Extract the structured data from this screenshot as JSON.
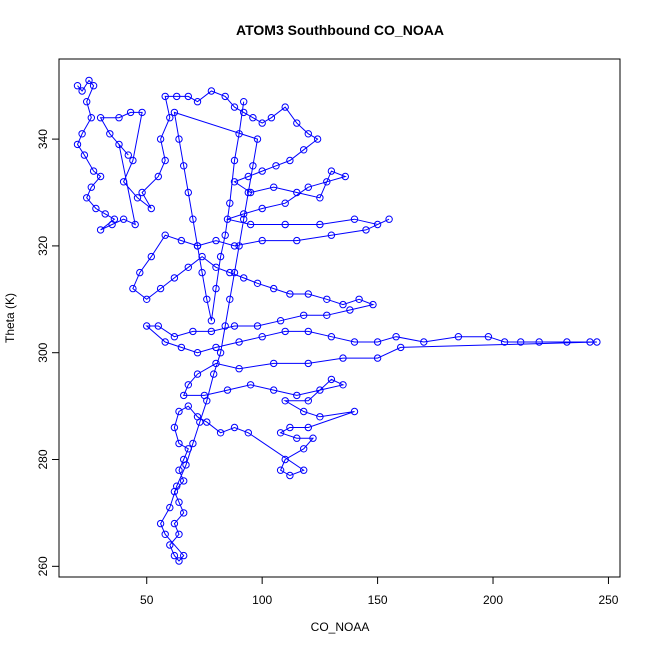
{
  "chart_data": {
    "type": "scatter",
    "title": "ATOM3 Southbound CO_NOAA",
    "xlabel": "CO_NOAA",
    "ylabel": "Theta (K)",
    "xlim": [
      12,
      255
    ],
    "ylim": [
      258,
      355
    ],
    "xticks": [
      50,
      100,
      150,
      200,
      250
    ],
    "yticks": [
      260,
      280,
      300,
      320,
      340
    ],
    "marker": "open-circle",
    "connected": true,
    "color": "#0000ff",
    "grid": false,
    "legend": "none",
    "series": [
      {
        "points": [
          [
            20,
            350
          ],
          [
            22,
            349
          ],
          [
            25,
            351
          ],
          [
            27,
            350
          ],
          [
            24,
            347
          ],
          [
            26,
            344
          ],
          [
            22,
            341
          ],
          [
            20,
            339
          ],
          [
            23,
            337
          ],
          [
            27,
            334
          ],
          [
            30,
            333
          ],
          [
            26,
            331
          ],
          [
            24,
            329
          ],
          [
            28,
            327
          ],
          [
            32,
            326
          ],
          [
            36,
            325
          ],
          [
            30,
            323
          ],
          [
            35,
            324
          ],
          [
            40,
            325
          ],
          [
            45,
            324
          ],
          [
            38,
            339
          ],
          [
            42,
            337
          ],
          [
            34,
            341
          ],
          [
            30,
            344
          ],
          [
            38,
            344
          ],
          [
            43,
            345
          ],
          [
            48,
            345
          ],
          [
            44,
            336
          ],
          [
            40,
            332
          ],
          [
            46,
            329
          ],
          [
            52,
            327
          ],
          [
            48,
            330
          ],
          [
            55,
            333
          ],
          [
            58,
            336
          ],
          [
            56,
            340
          ],
          [
            60,
            344
          ],
          [
            58,
            348
          ],
          [
            63,
            348
          ],
          [
            68,
            348
          ],
          [
            72,
            347
          ],
          [
            78,
            349
          ],
          [
            84,
            348
          ],
          [
            88,
            346
          ],
          [
            92,
            345
          ],
          [
            96,
            344
          ],
          [
            100,
            343
          ],
          [
            104,
            344
          ],
          [
            110,
            346
          ],
          [
            115,
            343
          ],
          [
            120,
            341
          ],
          [
            124,
            340
          ],
          [
            118,
            338
          ],
          [
            112,
            336
          ],
          [
            106,
            335
          ],
          [
            100,
            334
          ],
          [
            94,
            333
          ],
          [
            88,
            332
          ],
          [
            95,
            330
          ],
          [
            105,
            331
          ],
          [
            115,
            330
          ],
          [
            125,
            329
          ],
          [
            130,
            334
          ],
          [
            136,
            333
          ],
          [
            128,
            332
          ],
          [
            120,
            331
          ],
          [
            110,
            328
          ],
          [
            100,
            327
          ],
          [
            92,
            326
          ],
          [
            85,
            325
          ],
          [
            95,
            324
          ],
          [
            110,
            324
          ],
          [
            125,
            324
          ],
          [
            140,
            325
          ],
          [
            150,
            324
          ],
          [
            155,
            325
          ],
          [
            145,
            323
          ],
          [
            130,
            322
          ],
          [
            115,
            321
          ],
          [
            100,
            321
          ],
          [
            88,
            320
          ],
          [
            80,
            321
          ],
          [
            72,
            320
          ],
          [
            65,
            321
          ],
          [
            58,
            322
          ],
          [
            52,
            318
          ],
          [
            47,
            315
          ],
          [
            44,
            312
          ],
          [
            50,
            310
          ],
          [
            56,
            312
          ],
          [
            62,
            314
          ],
          [
            68,
            316
          ],
          [
            74,
            318
          ],
          [
            80,
            316
          ],
          [
            86,
            315
          ],
          [
            92,
            314
          ],
          [
            98,
            313
          ],
          [
            105,
            312
          ],
          [
            112,
            311
          ],
          [
            120,
            311
          ],
          [
            128,
            310
          ],
          [
            135,
            309
          ],
          [
            142,
            310
          ],
          [
            148,
            309
          ],
          [
            138,
            308
          ],
          [
            128,
            307
          ],
          [
            118,
            307
          ],
          [
            108,
            306
          ],
          [
            98,
            305
          ],
          [
            88,
            305
          ],
          [
            78,
            304
          ],
          [
            70,
            304
          ],
          [
            62,
            303
          ],
          [
            55,
            305
          ],
          [
            50,
            305
          ],
          [
            58,
            302
          ],
          [
            65,
            301
          ],
          [
            72,
            300
          ],
          [
            80,
            301
          ],
          [
            90,
            302
          ],
          [
            100,
            303
          ],
          [
            110,
            304
          ],
          [
            120,
            304
          ],
          [
            130,
            303
          ],
          [
            140,
            302
          ],
          [
            150,
            302
          ],
          [
            158,
            303
          ],
          [
            170,
            302
          ],
          [
            185,
            303
          ],
          [
            198,
            303
          ],
          [
            205,
            302
          ],
          [
            212,
            302
          ],
          [
            220,
            302
          ],
          [
            232,
            302
          ],
          [
            242,
            302
          ],
          [
            245,
            302
          ],
          [
            160,
            301
          ],
          [
            150,
            299
          ],
          [
            135,
            299
          ],
          [
            120,
            298
          ],
          [
            105,
            298
          ],
          [
            90,
            297
          ],
          [
            80,
            298
          ],
          [
            72,
            296
          ],
          [
            68,
            294
          ],
          [
            66,
            292
          ],
          [
            75,
            292
          ],
          [
            85,
            293
          ],
          [
            95,
            294
          ],
          [
            105,
            293
          ],
          [
            115,
            292
          ],
          [
            125,
            293
          ],
          [
            135,
            294
          ],
          [
            130,
            295
          ],
          [
            120,
            291
          ],
          [
            110,
            291
          ],
          [
            118,
            289
          ],
          [
            125,
            288
          ],
          [
            140,
            289
          ],
          [
            120,
            286
          ],
          [
            112,
            286
          ],
          [
            108,
            285
          ],
          [
            115,
            284
          ],
          [
            122,
            284
          ],
          [
            118,
            282
          ],
          [
            110,
            280
          ],
          [
            108,
            278
          ],
          [
            112,
            277
          ],
          [
            118,
            278
          ],
          [
            94,
            285
          ],
          [
            88,
            286
          ],
          [
            82,
            285
          ],
          [
            76,
            287
          ],
          [
            72,
            288
          ],
          [
            68,
            290
          ],
          [
            64,
            289
          ],
          [
            62,
            286
          ],
          [
            64,
            283
          ],
          [
            68,
            282
          ],
          [
            66,
            280
          ],
          [
            64,
            278
          ],
          [
            66,
            276
          ],
          [
            62,
            274
          ],
          [
            64,
            272
          ],
          [
            66,
            270
          ],
          [
            62,
            268
          ],
          [
            64,
            266
          ],
          [
            60,
            264
          ],
          [
            62,
            262
          ],
          [
            64,
            261
          ],
          [
            66,
            262
          ],
          [
            58,
            266
          ],
          [
            56,
            268
          ],
          [
            60,
            271
          ],
          [
            63,
            275
          ],
          [
            67,
            279
          ],
          [
            70,
            283
          ],
          [
            73,
            287
          ],
          [
            76,
            291
          ],
          [
            79,
            296
          ],
          [
            82,
            300
          ],
          [
            84,
            305
          ],
          [
            86,
            310
          ],
          [
            88,
            315
          ],
          [
            90,
            320
          ],
          [
            92,
            325
          ],
          [
            94,
            330
          ],
          [
            96,
            335
          ],
          [
            98,
            340
          ],
          [
            62,
            345
          ],
          [
            64,
            340
          ],
          [
            66,
            335
          ],
          [
            68,
            330
          ],
          [
            70,
            325
          ],
          [
            72,
            320
          ],
          [
            74,
            315
          ],
          [
            76,
            310
          ],
          [
            78,
            306
          ],
          [
            80,
            312
          ],
          [
            82,
            318
          ],
          [
            84,
            322
          ],
          [
            86,
            328
          ],
          [
            88,
            336
          ],
          [
            90,
            341
          ],
          [
            92,
            347
          ]
        ]
      }
    ]
  }
}
